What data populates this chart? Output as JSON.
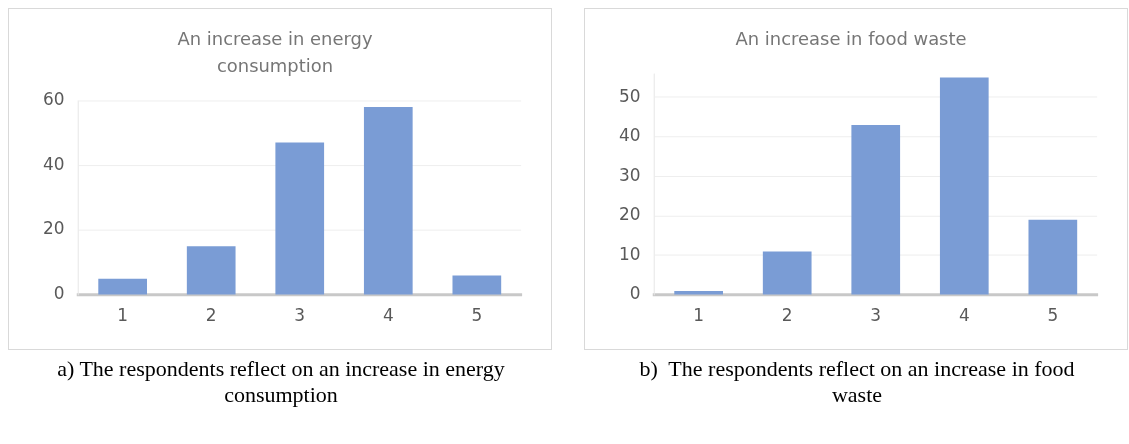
{
  "chart_data": [
    {
      "type": "bar",
      "title": "An increase in energy consumption",
      "categories": [
        "1",
        "2",
        "3",
        "4",
        "5"
      ],
      "values": [
        5,
        15,
        47,
        58,
        6
      ],
      "color": "#7a9cd5",
      "ylim": [
        0,
        60
      ],
      "yticks": [
        0,
        20,
        40,
        60
      ],
      "grid": "y",
      "annotations": [
        "a) The respondents reflect on an increase in energy consumption"
      ]
    },
    {
      "type": "bar",
      "title": "An increase in food waste",
      "categories": [
        "1",
        "2",
        "3",
        "4",
        "5"
      ],
      "values": [
        1,
        11,
        43,
        55,
        19
      ],
      "color": "#7a9cd5",
      "ylim": [
        0,
        56
      ],
      "yticks": [
        0,
        10,
        20,
        30,
        40,
        50
      ],
      "grid": "y",
      "annotations": [
        "b)  The respondents reflect on an increase in food waste"
      ]
    }
  ]
}
